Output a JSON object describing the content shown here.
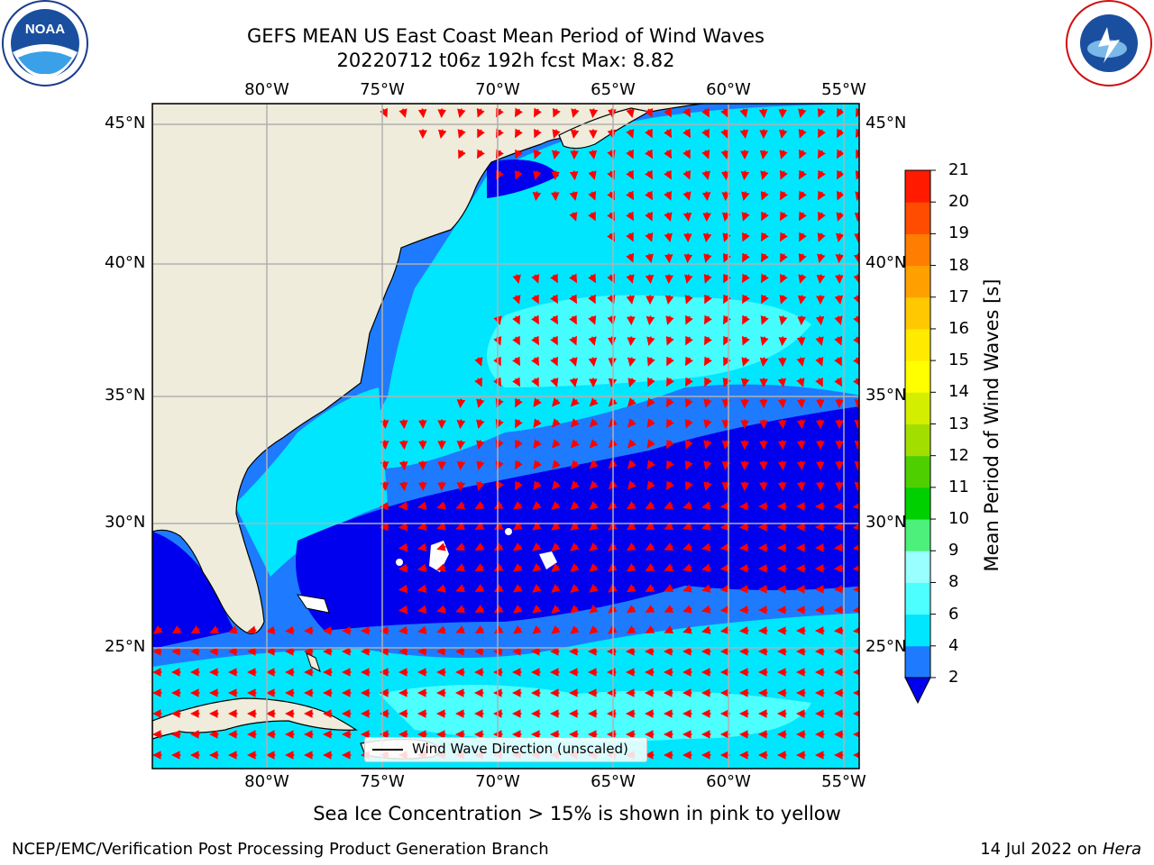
{
  "header": {
    "title_line1": "GEFS MEAN US East Coast Mean Period of Wind Waves",
    "title_line2": "20220712 t06z 192h fcst   Max: 8.82"
  },
  "logos": {
    "left": "NOAA",
    "left_ring_text": "NATIONAL OCEANIC AND ATMOSPHERIC ADMINISTRATION",
    "left_bottom_text": "U.S. DEPARTMENT OF COMMERCE",
    "right_ring_text": "NATIONAL WEATHER SERVICE"
  },
  "map": {
    "lon_labels": [
      "80°W",
      "75°W",
      "70°W",
      "65°W",
      "60°W",
      "55°W"
    ],
    "lat_labels": [
      "45°N",
      "40°N",
      "35°N",
      "30°N",
      "25°N"
    ],
    "legend_label": "Wind Wave Direction (unscaled)",
    "arrow_color": "#ff0000",
    "land_color": "#efecdc"
  },
  "colorbar": {
    "label": "Mean Period of Wind Waves [s]",
    "ticks": [
      "21",
      "20",
      "19",
      "18",
      "17",
      "16",
      "15",
      "14",
      "13",
      "12",
      "11",
      "10",
      "9",
      "8",
      "6",
      "4",
      "2"
    ],
    "levels": [
      2,
      4,
      6,
      8,
      9,
      10,
      11,
      12,
      13,
      14,
      15,
      16,
      17,
      18,
      19,
      20,
      21
    ],
    "colors": [
      "#1e7bff",
      "#00e6ff",
      "#4dffff",
      "#99ffff",
      "#4cf07a",
      "#00d000",
      "#4ecf00",
      "#a2de00",
      "#d4ee00",
      "#ffff00",
      "#ffea00",
      "#ffc800",
      "#ffa000",
      "#ff7d00",
      "#ff4c00",
      "#ff1a00"
    ],
    "underflow_color": "#0000ee"
  },
  "footer": {
    "subtitle": "Sea Ice Concentration > 15% is shown in pink to yellow",
    "left_text": "NCEP/EMC/Verification Post Processing Product Generation Branch",
    "right_text": "14 Jul 2022 on",
    "right_italic": "Hera"
  }
}
